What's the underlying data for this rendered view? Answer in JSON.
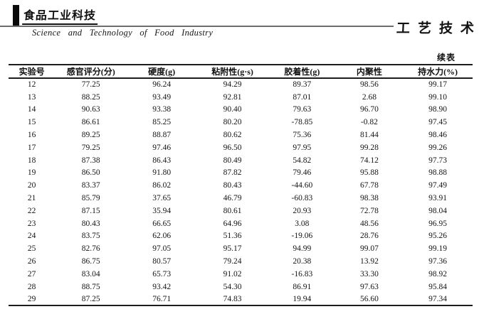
{
  "masthead": {
    "journal_name_cn": "食品工业科技",
    "journal_name_en": "Science and Technology of Food Industry",
    "section_label": "工艺技术"
  },
  "table": {
    "continued_label": "续表",
    "columns": [
      "实验号",
      "感官评分(分)",
      "硬度(g)",
      "粘附性(g·s)",
      "胶着性(g)",
      "内聚性",
      "持水力(%)"
    ],
    "rows": [
      [
        "12",
        "77.25",
        "96.24",
        "94.29",
        "89.37",
        "98.56",
        "99.17"
      ],
      [
        "13",
        "88.25",
        "93.49",
        "92.81",
        "87.01",
        "2.68",
        "99.10"
      ],
      [
        "14",
        "90.63",
        "93.38",
        "90.40",
        "79.63",
        "96.70",
        "98.90"
      ],
      [
        "15",
        "86.61",
        "85.25",
        "80.20",
        "-78.85",
        "-0.82",
        "97.45"
      ],
      [
        "16",
        "89.25",
        "88.87",
        "80.62",
        "75.36",
        "81.44",
        "98.46"
      ],
      [
        "17",
        "79.25",
        "97.46",
        "96.50",
        "97.95",
        "99.28",
        "99.26"
      ],
      [
        "18",
        "87.38",
        "86.43",
        "80.49",
        "54.82",
        "74.12",
        "97.73"
      ],
      [
        "19",
        "86.50",
        "91.80",
        "87.82",
        "79.46",
        "95.88",
        "98.88"
      ],
      [
        "20",
        "83.37",
        "86.02",
        "80.43",
        "-44.60",
        "67.78",
        "97.49"
      ],
      [
        "21",
        "85.79",
        "37.65",
        "46.79",
        "-60.83",
        "98.38",
        "93.91"
      ],
      [
        "22",
        "87.15",
        "35.94",
        "80.61",
        "20.93",
        "72.78",
        "98.04"
      ],
      [
        "23",
        "80.43",
        "66.65",
        "64.96",
        "3.08",
        "48.56",
        "96.95"
      ],
      [
        "24",
        "83.75",
        "62.06",
        "51.36",
        "-19.06",
        "28.76",
        "95.26"
      ],
      [
        "25",
        "82.76",
        "97.05",
        "95.17",
        "94.99",
        "99.07",
        "99.19"
      ],
      [
        "26",
        "86.75",
        "80.57",
        "79.24",
        "20.38",
        "13.92",
        "97.36"
      ],
      [
        "27",
        "83.04",
        "65.73",
        "91.02",
        "-16.83",
        "33.30",
        "98.92"
      ],
      [
        "28",
        "88.75",
        "93.42",
        "54.30",
        "86.91",
        "97.63",
        "95.84"
      ],
      [
        "29",
        "87.25",
        "76.71",
        "74.83",
        "19.94",
        "56.60",
        "97.34"
      ]
    ]
  },
  "colors": {
    "text": "#111111",
    "rule_gray": "#6e6e6e",
    "table_border": "#1c1c1c"
  }
}
